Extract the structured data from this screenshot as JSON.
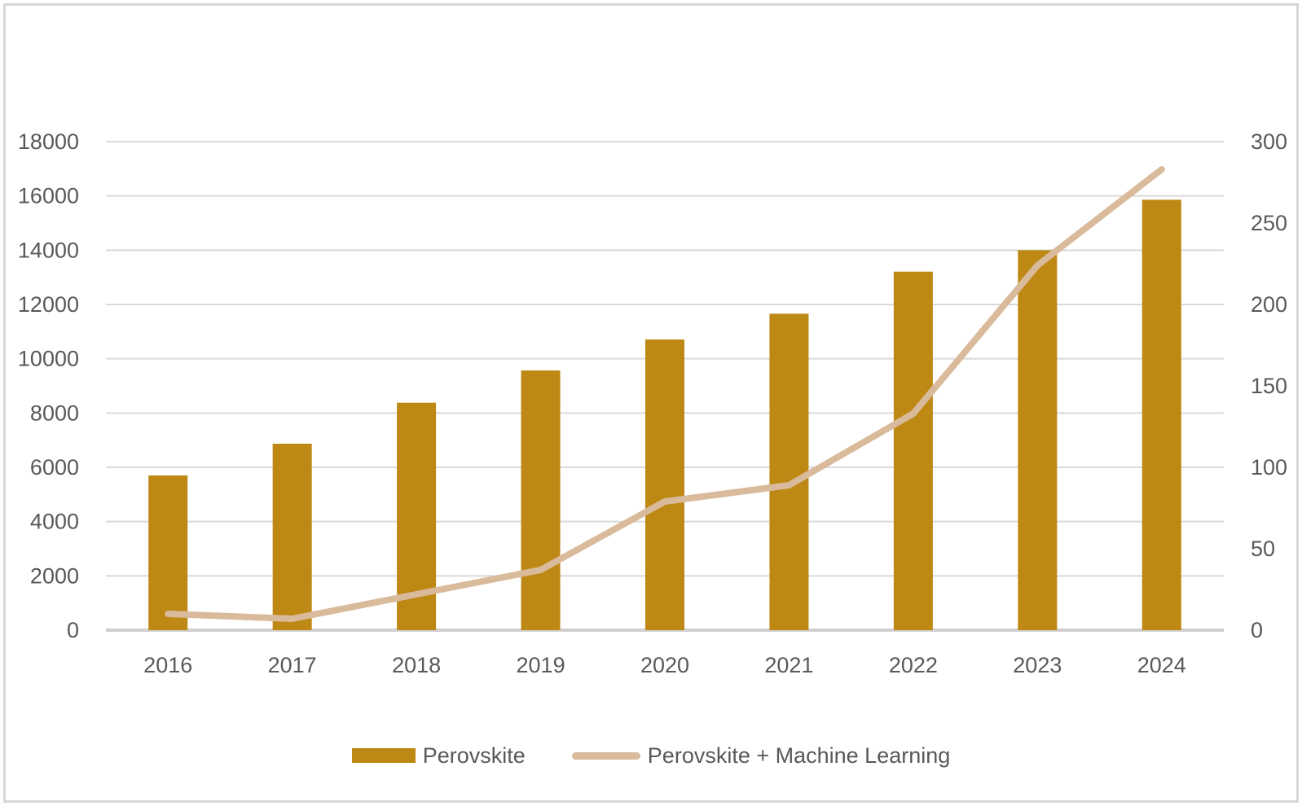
{
  "chart_data": {
    "type": "combo",
    "title": "",
    "categories": [
      "2016",
      "2017",
      "2018",
      "2019",
      "2020",
      "2021",
      "2022",
      "2023",
      "2024"
    ],
    "series": [
      {
        "name": "Perovskite",
        "type": "bar",
        "axis": "left",
        "color": "#BE8814",
        "values": [
          5700,
          6870,
          8380,
          9570,
          10710,
          11660,
          13210,
          14000,
          15860
        ]
      },
      {
        "name": "Perovskite + Machine Learning",
        "type": "line",
        "axis": "right",
        "color": "#D9BA9B",
        "values": [
          10,
          7,
          22,
          37,
          79,
          89,
          133,
          224,
          283
        ]
      }
    ],
    "left_axis": {
      "min": 0,
      "max": 18000,
      "step": 2000,
      "tick_labels": [
        "18000",
        "16000",
        "14000",
        "12000",
        "10000",
        "8000",
        "6000",
        "4000",
        "2000",
        "0"
      ]
    },
    "right_axis": {
      "min": 0,
      "max": 300,
      "step": 50,
      "tick_labels": [
        "300",
        "250",
        "200",
        "150",
        "100",
        "50",
        "0"
      ]
    },
    "grid": true,
    "legend_position": "bottom"
  },
  "legend": {
    "items": [
      {
        "label": "Perovskite"
      },
      {
        "label": "Perovskite + Machine Learning"
      }
    ]
  },
  "styles": {
    "text_color": "#595959",
    "gridline_color": "#D9D9D9",
    "baseline_color": "#D0CECE",
    "frame_color": "#D8D6D6",
    "background": "#FFFFFF"
  }
}
